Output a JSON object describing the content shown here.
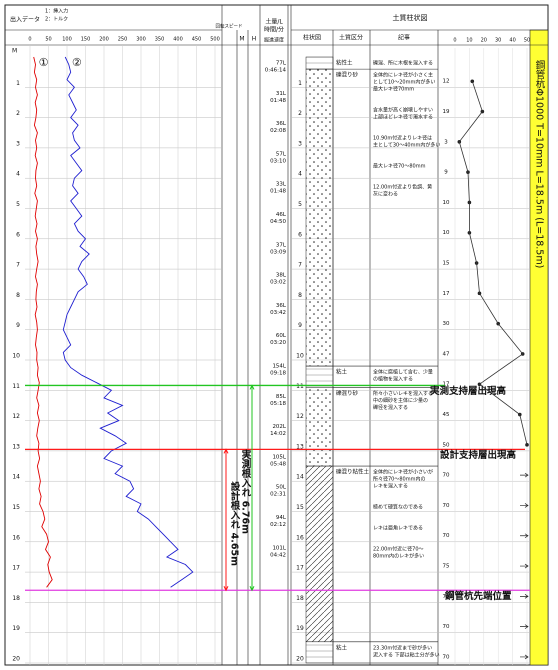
{
  "header": {
    "left_title": "出入データ",
    "depth_unit": "M",
    "speed": "回転スピード",
    "volume": "土量/L",
    "time": "時間/分",
    "m": "M",
    "h": "H",
    "rate": "掘進速度",
    "soil_title": "土質柱状図",
    "col_column": "柱状図",
    "col_soil": "土質区分",
    "col_desc": "記事"
  },
  "log": {
    "xlim": [
      0,
      500
    ],
    "xticks": [
      0,
      50,
      100,
      150,
      200,
      250,
      300,
      350,
      400,
      450,
      500
    ],
    "depthticks": [
      1,
      2,
      3,
      4,
      5,
      6,
      7,
      8,
      9,
      10,
      11,
      12,
      13,
      14,
      15,
      16,
      17,
      18,
      19,
      20
    ],
    "depth": [
      0,
      0.25,
      0.5,
      0.75,
      1,
      1.25,
      1.5,
      1.75,
      2,
      2.25,
      2.5,
      2.75,
      3,
      3.25,
      3.5,
      3.75,
      4,
      4.25,
      4.5,
      4.75,
      5,
      5.25,
      5.5,
      5.75,
      6,
      6.25,
      6.5,
      6.75,
      7,
      7.25,
      7.5,
      7.75,
      8,
      8.25,
      8.5,
      8.75,
      9,
      9.25,
      9.5,
      9.75,
      10,
      10.25,
      10.5,
      10.75,
      11,
      11.25,
      11.5,
      11.75,
      12,
      12.25,
      12.5,
      12.75,
      13,
      13.25,
      13.5,
      13.75,
      14,
      14.25,
      14.5,
      14.75,
      15,
      15.25,
      15.5,
      15.75,
      16,
      16.25,
      16.5,
      16.75,
      17,
      17.25,
      17.5
    ],
    "series": [
      {
        "name": "1：挿入力",
        "marker": "①",
        "color": "#e00000",
        "values": [
          10,
          15,
          12,
          18,
          15,
          20,
          14,
          18,
          16,
          12,
          20,
          15,
          18,
          14,
          20,
          16,
          15,
          18,
          13,
          20,
          17,
          14,
          19,
          15,
          20,
          16,
          18,
          22,
          18,
          15,
          20,
          17,
          16,
          19,
          14,
          18,
          20,
          17,
          15,
          19,
          18,
          22,
          20,
          25,
          22,
          18,
          24,
          20,
          25,
          21,
          18,
          24,
          22,
          26,
          20,
          24,
          28,
          24,
          30,
          26,
          35,
          40,
          32,
          45,
          50,
          42,
          55,
          48,
          52,
          60,
          45
        ]
      },
      {
        "name": "2：トルク",
        "marker": "②",
        "color": "#1f1fd0",
        "values": [
          95,
          105,
          110,
          100,
          120,
          105,
          115,
          125,
          110,
          130,
          115,
          120,
          135,
          110,
          125,
          140,
          120,
          115,
          130,
          110,
          125,
          140,
          120,
          130,
          150,
          135,
          160,
          140,
          130,
          145,
          155,
          130,
          120,
          110,
          100,
          95,
          90,
          100,
          110,
          90,
          95,
          110,
          140,
          180,
          220,
          200,
          250,
          210,
          240,
          190,
          230,
          260,
          220,
          200,
          250,
          230,
          270,
          280,
          260,
          300,
          290,
          320,
          340,
          360,
          380,
          400,
          370,
          420,
          440,
          410,
          380
        ]
      }
    ]
  },
  "drilling": [
    {
      "volume": "77L",
      "time": "0:46:14"
    },
    {
      "volume": "31L",
      "time": "01:48"
    },
    {
      "volume": "36L",
      "time": "02:08"
    },
    {
      "volume": "57L",
      "time": "03:10"
    },
    {
      "volume": "33L",
      "time": "01:48"
    },
    {
      "volume": "46L",
      "time": "04:50"
    },
    {
      "volume": "37L",
      "time": "03:09"
    },
    {
      "volume": "38L",
      "time": "03:02"
    },
    {
      "volume": "36L",
      "time": "03:42"
    },
    {
      "volume": "60L",
      "time": "03:20"
    },
    {
      "volume": "154L",
      "time": "09:18"
    },
    {
      "volume": "85L",
      "time": "05:18"
    },
    {
      "volume": "202L",
      "time": "14:02"
    },
    {
      "volume": "105L",
      "time": "05:48"
    },
    {
      "volume": "50L",
      "time": "02:31"
    },
    {
      "volume": "94L",
      "time": "02:12"
    },
    {
      "volume": "101L",
      "time": "04:42"
    }
  ],
  "soil": [
    {
      "soil": "粘性土",
      "pattern": "plain",
      "top": 0,
      "bottom": 0.4,
      "desc": [
        [
          "礫混、所に木根を混入する"
        ]
      ]
    },
    {
      "soil": "礫混り砂",
      "pattern": "dots",
      "top": 0.4,
      "bottom": 10.2,
      "desc": [
        [
          "全体的にレキ径が小さく主",
          "として10～20mm内が多い",
          "最大レキ径70mm"
        ],
        [
          "含水量が高く崩壊しやすい",
          "上部ほどレキ径で濁水する"
        ],
        [
          "10.90m付近よりレキ径は",
          "主として30～40mm内が多い"
        ],
        [
          "最大レキ径70～80mm"
        ],
        [
          "12.00m付近より色調、黄",
          "灰に変わる"
        ]
      ]
    },
    {
      "soil": "粘土",
      "pattern": "plain",
      "top": 10.2,
      "bottom": 10.9,
      "desc": [
        [
          "全体に腐植して含む、少量",
          "の植物を混入する"
        ]
      ]
    },
    {
      "soil": "礫混り砂",
      "pattern": "dots",
      "top": 10.9,
      "bottom": 13.5,
      "desc": [
        [
          "所々小さいレキを混入する",
          "中の細砂を主体に少量の",
          "礫径を混入する"
        ]
      ]
    },
    {
      "soil": "礫混り粘性土",
      "pattern": "hatch",
      "top": 13.5,
      "bottom": 19.3,
      "desc": [
        [
          "全体的にレキ径が小さいが",
          "所々径70～80mm内の",
          "レキを混入する"
        ],
        [
          "極めて硬質なのである"
        ],
        [
          "レキは亜角レキである"
        ],
        [
          "22.00m付近に径70～",
          "80mm内のレキが多い"
        ]
      ]
    },
    {
      "soil": "粘土",
      "pattern": "plain",
      "top": 19.3,
      "bottom": 20,
      "desc": [
        [
          "23.30m付近まで砂が多い",
          "泥入する 下部は粘土分が多い"
        ]
      ]
    }
  ],
  "n_value": {
    "xlim": [
      0,
      50
    ],
    "xticks": [
      0,
      10,
      20,
      30,
      40,
      50
    ],
    "depth": [
      0.8,
      1.8,
      2.8,
      3.8,
      4.8,
      5.8,
      6.8,
      7.8,
      8.8,
      9.8,
      10.8,
      11.8,
      12.8,
      13.8,
      14.8,
      15.8,
      16.8,
      17.8,
      18.8,
      19.8
    ],
    "values": [
      12,
      19,
      3,
      9,
      10,
      10,
      15,
      17,
      30,
      47,
      17,
      45,
      50,
      70,
      70,
      70,
      75,
      70,
      70,
      70
    ]
  },
  "markers": [
    {
      "label": "実測支持層出現高",
      "depth": 10.84,
      "color": "#22c522"
    },
    {
      "label": "設計支持層出現高",
      "depth": 12.95,
      "color": "#ff1a1a"
    },
    {
      "label": "鋼管杭先端位置",
      "depth": 17.6,
      "color": "#e03ce0"
    }
  ],
  "embedment": [
    {
      "label": "実測根入れ 6.76m",
      "color": "#22c522"
    },
    {
      "label": "設計根入れ 4.65m",
      "color": "#ff1a1a"
    }
  ],
  "pile": "鋼管杭Φ1000 T=10mm L=18.5m (L=18.5m)"
}
